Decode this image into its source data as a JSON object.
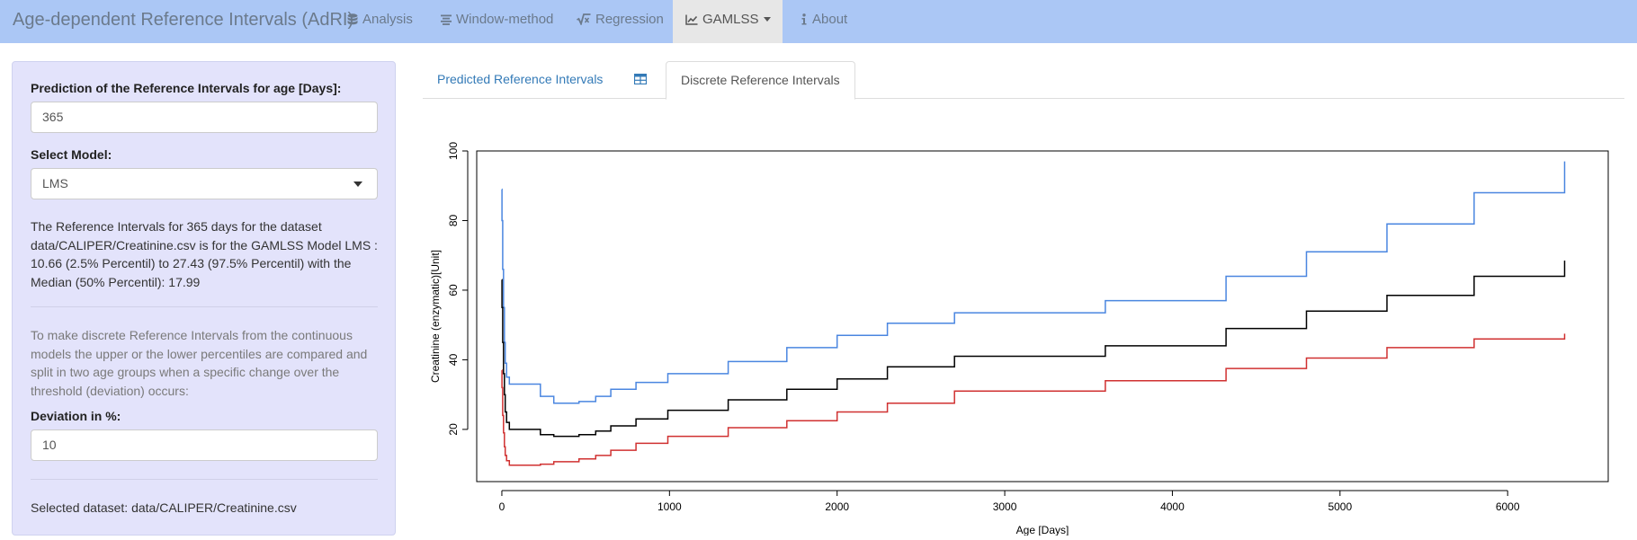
{
  "navbar": {
    "brand": "Age-dependent Reference Intervals (AdRI)",
    "items": [
      {
        "label": "Analysis",
        "icon": "database-icon"
      },
      {
        "label": "Window-method",
        "icon": "align-center-icon"
      },
      {
        "label": "Regression",
        "icon": "square-root-icon"
      },
      {
        "label": "GAMLSS",
        "icon": "line-chart-icon",
        "active": true
      },
      {
        "label": "About",
        "icon": "info-icon"
      }
    ]
  },
  "sidebar": {
    "age_label": "Prediction of the Reference Intervals for age [Days]:",
    "age_value": "365",
    "model_label": "Select Model:",
    "model_value": "LMS",
    "result_text": "The Reference Intervals for 365 days for the dataset data/CALIPER/Creatinine.csv is for the GAMLSS Model LMS : 10.66 (2.5% Percentil) to 27.43 (97.5% Percentil) with the Median (50% Percentil): 17.99",
    "discrete_help": "To make discrete Reference Intervals from the continuous models the upper or the lower percentiles are compared and split in two age groups when a specific change over the threshold (deviation) occurs:",
    "deviation_label": "Deviation in %:",
    "deviation_value": "10",
    "dataset_text": "Selected dataset: data/CALIPER/Creatinine.csv"
  },
  "tabs": [
    {
      "label": "Predicted Reference Intervals",
      "active": false
    },
    {
      "label": "",
      "icon": "table-icon",
      "active": false
    },
    {
      "label": "Discrete Reference Intervals",
      "active": true
    }
  ],
  "colors": {
    "navbar_bg": "#abc7f5",
    "sidebar_bg": "#e3e3fb",
    "link": "#337ab7",
    "upper": "#4a86e0",
    "median": "#000000",
    "lower": "#d03030"
  },
  "chart_data": {
    "type": "line",
    "title": "",
    "xlabel": "Age [Days]",
    "ylabel": "Creatinine (enzymatic)[Unit]",
    "xlim": [
      -150,
      6600
    ],
    "ylim": [
      5,
      100
    ],
    "xticks": [
      0,
      1000,
      2000,
      3000,
      4000,
      5000,
      6000
    ],
    "yticks": [
      20,
      40,
      60,
      80,
      100
    ],
    "grid": false,
    "legend": "none",
    "series": [
      {
        "role": "upper",
        "color": "#4a86e0",
        "x": [
          0,
          1,
          5,
          10,
          15,
          20,
          28,
          45,
          100,
          230,
          310,
          460,
          560,
          650,
          800,
          990,
          1350,
          1700,
          2000,
          2300,
          2700,
          3600,
          4320,
          4800,
          5280,
          5800,
          6340
        ],
        "y": [
          89,
          80,
          66,
          55,
          45,
          39,
          35,
          33,
          33,
          29.5,
          27.5,
          28,
          29.5,
          31.5,
          33.5,
          36,
          39.5,
          43.5,
          47,
          50.5,
          53.5,
          57,
          64,
          71,
          79,
          88,
          97
        ]
      },
      {
        "role": "median",
        "color": "#000000",
        "x": [
          0,
          1,
          5,
          10,
          15,
          20,
          28,
          45,
          100,
          230,
          310,
          460,
          560,
          650,
          800,
          990,
          1350,
          1700,
          2000,
          2300,
          2700,
          3600,
          4320,
          4800,
          5280,
          5800,
          6340
        ],
        "y": [
          63,
          55,
          45,
          36,
          30,
          25,
          22,
          20,
          20,
          18.5,
          18,
          18.5,
          19.5,
          21,
          23,
          25.5,
          28.5,
          31.5,
          34.5,
          38,
          41,
          44,
          49,
          54,
          58.5,
          64,
          68.5
        ]
      },
      {
        "role": "lower",
        "color": "#d03030",
        "x": [
          0,
          1,
          5,
          10,
          15,
          20,
          28,
          45,
          100,
          230,
          310,
          460,
          560,
          650,
          800,
          990,
          1350,
          1700,
          2000,
          2300,
          2700,
          3600,
          4320,
          4800,
          5280,
          5800,
          6340
        ],
        "y": [
          37,
          32,
          24,
          19,
          15,
          12.5,
          11,
          9.7,
          9.7,
          10,
          10.7,
          11.5,
          12.5,
          14,
          16,
          18,
          20.5,
          22.5,
          25,
          27.5,
          31,
          34,
          37.5,
          40.5,
          43.5,
          46,
          47.5
        ]
      }
    ]
  }
}
